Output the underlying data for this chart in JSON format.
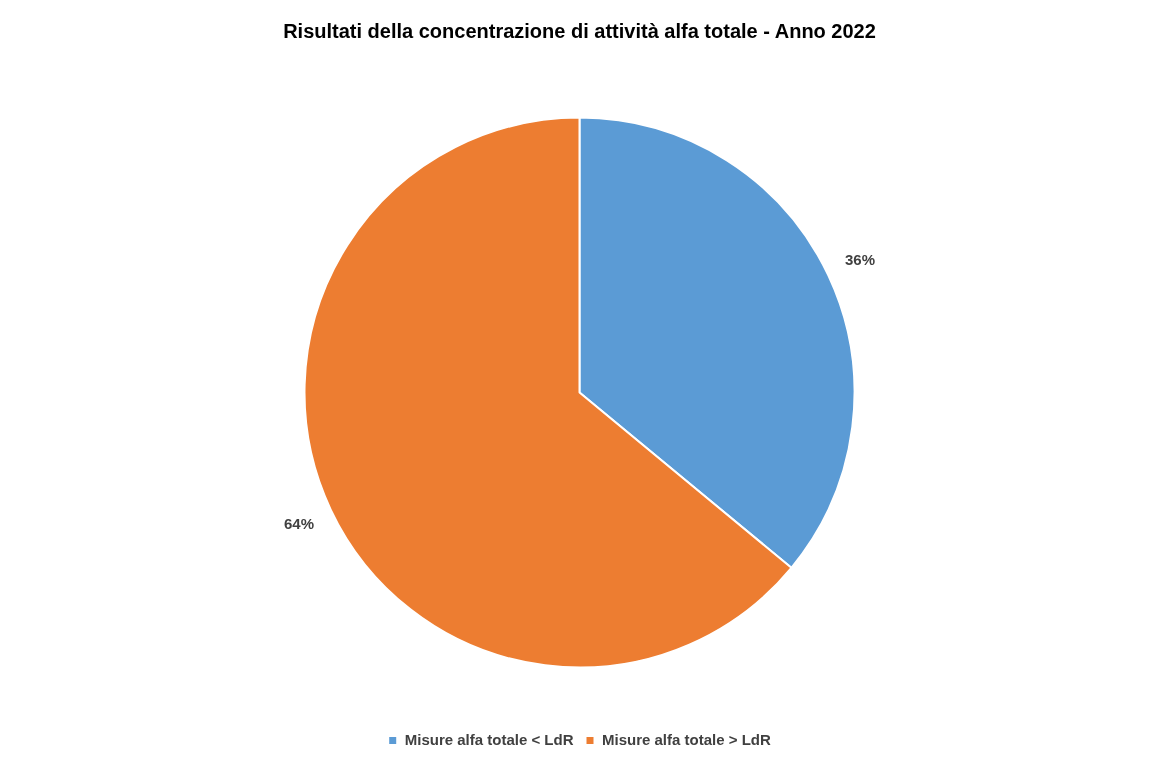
{
  "chart_data": {
    "type": "pie",
    "title": "Risultati della concentrazione di attività alfa totale - Anno 2022",
    "categories": [
      "Misure alfa totale < LdR",
      "Misure alfa totale > LdR"
    ],
    "values": [
      36,
      64
    ],
    "colors": [
      "#5b9bd5",
      "#ed7d31"
    ],
    "value_labels": [
      "36%",
      "64%"
    ],
    "legend": "bottom"
  }
}
